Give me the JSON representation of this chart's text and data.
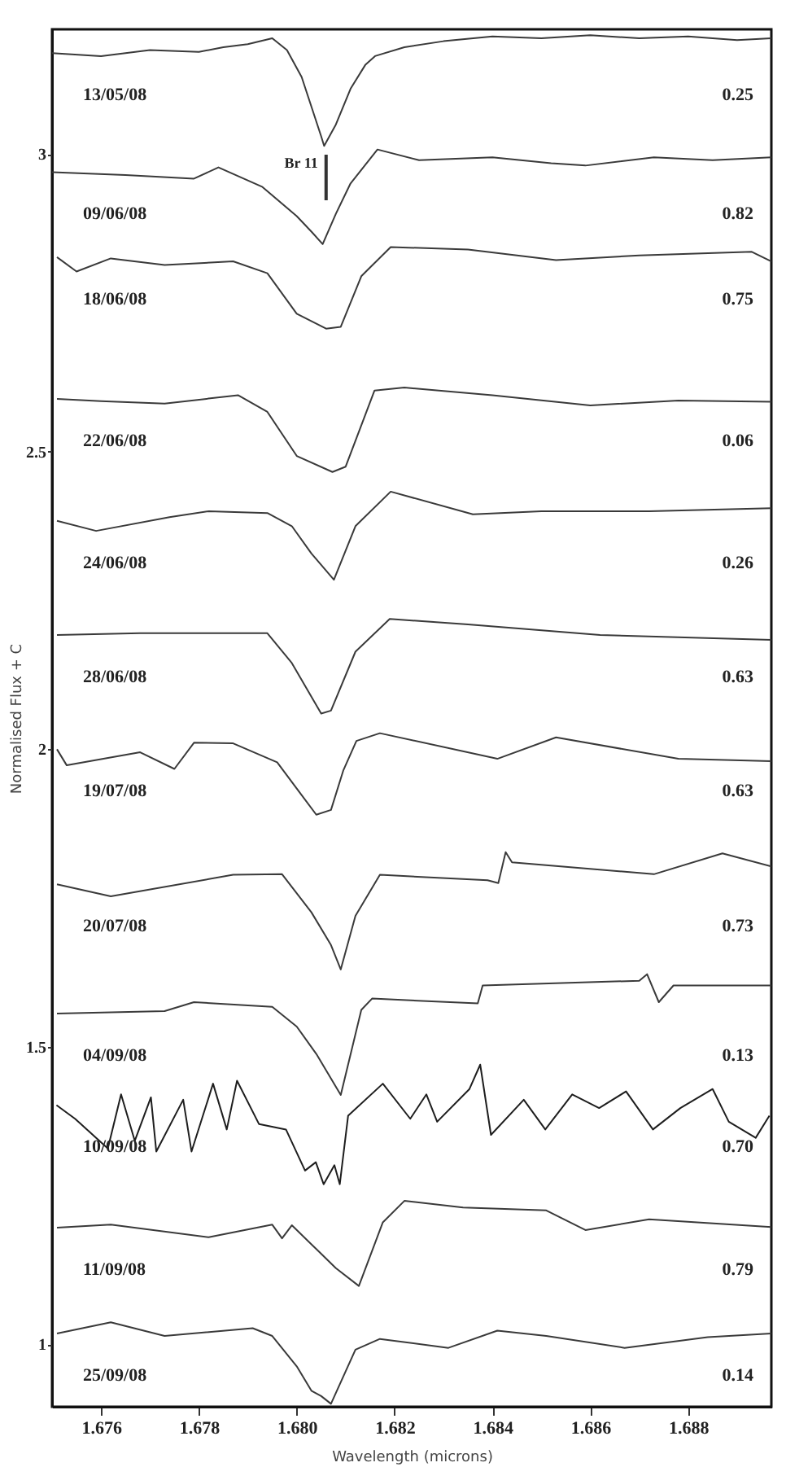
{
  "chart_data": {
    "type": "line",
    "xlabel": "Wavelength (microns)",
    "ylabel": "Normalised Flux + C",
    "xlim": [
      1.675,
      1.6897
    ],
    "ylim": [
      0.895,
      3.21
    ],
    "xticks": [
      1.676,
      1.678,
      {
        "value": 1.68,
        "label": "1.680"
      },
      1.682,
      1.684,
      1.686,
      1.688
    ],
    "yticks": [
      1,
      1.5,
      2,
      2.5,
      3
    ],
    "grid": false,
    "marker": "none",
    "line_style": "solid",
    "series": [
      {
        "name": "13/05/08",
        "color": "#3a3a3a",
        "x": [
          1.675,
          1.676,
          1.677,
          1.678,
          1.6785,
          1.679,
          1.6795,
          1.6798,
          1.6801,
          1.6803,
          1.6805,
          1.68056,
          1.6808,
          1.6811,
          1.6814,
          1.6816,
          1.6822,
          1.683,
          1.684,
          1.685,
          1.686,
          1.687,
          1.688,
          1.689,
          1.6897
        ],
        "values": [
          3.17,
          3.165,
          3.175,
          3.172,
          3.18,
          3.185,
          3.195,
          3.175,
          3.13,
          3.08,
          3.03,
          3.014,
          3.05,
          3.11,
          3.15,
          3.165,
          3.18,
          3.19,
          3.198,
          3.195,
          3.2,
          3.195,
          3.198,
          3.192,
          3.195
        ]
      },
      {
        "name": "09/06/08",
        "color": "#3a3a3a",
        "x": [
          1.675,
          1.6765,
          1.6779,
          1.6784,
          1.6793,
          1.68,
          1.6803,
          1.68053,
          1.6808,
          1.6811,
          1.68165,
          1.6825,
          1.684,
          1.6852,
          1.6859,
          1.6873,
          1.6885,
          1.6897
        ],
        "values": [
          2.97,
          2.965,
          2.959,
          2.978,
          2.945,
          2.896,
          2.87,
          2.849,
          2.9,
          2.951,
          3.008,
          2.99,
          2.995,
          2.985,
          2.981,
          2.995,
          2.99,
          2.995
        ]
      },
      {
        "name": "18/06/08",
        "color": "#3a3a3a",
        "x": [
          1.6751,
          1.6755,
          1.6762,
          1.6773,
          1.6787,
          1.6794,
          1.68,
          1.6806,
          1.6809,
          1.68132,
          1.68192,
          1.6835,
          1.6853,
          1.687,
          1.6893,
          1.6897
        ],
        "values": [
          2.827,
          2.803,
          2.825,
          2.814,
          2.82,
          2.8,
          2.732,
          2.707,
          2.71,
          2.795,
          2.844,
          2.84,
          2.822,
          2.83,
          2.836,
          2.82
        ]
      },
      {
        "name": "22/06/08",
        "color": "#3a3a3a",
        "x": [
          1.6751,
          1.676,
          1.6773,
          1.6788,
          1.6794,
          1.68,
          1.68073,
          1.681,
          1.68159,
          1.6822,
          1.684,
          1.686,
          1.6878,
          1.6897
        ],
        "values": [
          2.589,
          2.585,
          2.581,
          2.595,
          2.567,
          2.493,
          2.466,
          2.475,
          2.603,
          2.608,
          2.595,
          2.578,
          2.586,
          2.584
        ]
      },
      {
        "name": "24/06/08",
        "color": "#3a3a3a",
        "x": [
          1.6751,
          1.6759,
          1.6774,
          1.6782,
          1.6794,
          1.6799,
          1.6803,
          1.68076,
          1.6812,
          1.68192,
          1.6836,
          1.685,
          1.6872,
          1.6897
        ],
        "values": [
          2.384,
          2.367,
          2.39,
          2.4,
          2.397,
          2.375,
          2.329,
          2.285,
          2.375,
          2.433,
          2.395,
          2.4,
          2.4,
          2.405
        ]
      },
      {
        "name": "28/06/08",
        "color": "#3a3a3a",
        "x": [
          1.6751,
          1.6768,
          1.6785,
          1.6794,
          1.6799,
          1.6805,
          1.6807,
          1.6812,
          1.6819,
          1.6835,
          1.6862,
          1.6897
        ],
        "values": [
          2.192,
          2.195,
          2.195,
          2.195,
          2.145,
          2.06,
          2.065,
          2.164,
          2.219,
          2.21,
          2.192,
          2.184
        ]
      },
      {
        "name": "19/07/08",
        "color": "#3a3a3a",
        "x": [
          1.6751,
          1.6753,
          1.6768,
          1.6775,
          1.6779,
          1.6787,
          1.6796,
          1.6801,
          1.6804,
          1.6807,
          1.68095,
          1.68122,
          1.6817,
          1.6841,
          1.6853,
          1.6878,
          1.6897
        ],
        "values": [
          2.0,
          1.973,
          1.995,
          1.967,
          2.011,
          2.01,
          1.978,
          1.923,
          1.89,
          1.898,
          1.964,
          2.014,
          2.027,
          1.984,
          2.02,
          1.984,
          1.98
        ]
      },
      {
        "name": "20/07/08",
        "color": "#3a3a3a",
        "x": [
          1.6751,
          1.6762,
          1.6787,
          1.6797,
          1.6803,
          1.6807,
          1.6809,
          1.6812,
          1.6817,
          1.6839,
          1.68412,
          1.68427,
          1.6844,
          1.6873,
          1.6887,
          1.6897
        ],
        "values": [
          1.773,
          1.753,
          1.789,
          1.79,
          1.726,
          1.671,
          1.63,
          1.72,
          1.789,
          1.78,
          1.775,
          1.827,
          1.81,
          1.79,
          1.825,
          1.803
        ]
      },
      {
        "name": "04/09/08",
        "color": "#3a3a3a",
        "x": [
          1.6751,
          1.6773,
          1.6779,
          1.6795,
          1.68,
          1.6804,
          1.6809,
          1.68132,
          1.68154,
          1.6837,
          1.6838,
          1.687,
          1.68716,
          1.6874,
          1.6877,
          1.6897
        ],
        "values": [
          1.556,
          1.56,
          1.575,
          1.567,
          1.534,
          1.488,
          1.419,
          1.562,
          1.581,
          1.573,
          1.603,
          1.611,
          1.622,
          1.575,
          1.603,
          1.603
        ]
      },
      {
        "name": "10/09/08",
        "color": "#1e1e1e",
        "x": [
          1.67509,
          1.67547,
          1.67614,
          1.67641,
          1.67669,
          1.67702,
          1.67713,
          1.67768,
          1.67785,
          1.67829,
          1.67857,
          1.67878,
          1.67923,
          1.67978,
          1.68017,
          1.68039,
          1.68055,
          1.68077,
          1.68088,
          1.68105,
          1.68176,
          1.68232,
          1.68265,
          1.68287,
          1.68353,
          1.68375,
          1.68397,
          1.68464,
          1.68508,
          1.68563,
          1.68618,
          1.68673,
          1.68728,
          1.68784,
          1.6885,
          1.68883,
          1.68938,
          1.68966
        ],
        "values": [
          1.402,
          1.379,
          1.329,
          1.42,
          1.342,
          1.415,
          1.324,
          1.411,
          1.324,
          1.438,
          1.361,
          1.443,
          1.37,
          1.361,
          1.292,
          1.306,
          1.269,
          1.301,
          1.269,
          1.384,
          1.438,
          1.379,
          1.42,
          1.374,
          1.429,
          1.47,
          1.352,
          1.411,
          1.361,
          1.42,
          1.397,
          1.425,
          1.361,
          1.397,
          1.429,
          1.374,
          1.347,
          1.384
        ]
      },
      {
        "name": "11/09/08",
        "color": "#3a3a3a",
        "x": [
          1.6751,
          1.6762,
          1.6782,
          1.6795,
          1.6797,
          1.6799,
          1.6804,
          1.6808,
          1.68127,
          1.68176,
          1.6822,
          1.6834,
          1.6851,
          1.6859,
          1.6872,
          1.6897
        ],
        "values": [
          1.196,
          1.201,
          1.18,
          1.201,
          1.178,
          1.2,
          1.16,
          1.128,
          1.098,
          1.205,
          1.241,
          1.23,
          1.225,
          1.192,
          1.21,
          1.197
        ]
      },
      {
        "name": "25/09/08",
        "color": "#3a3a3a",
        "x": [
          1.6751,
          1.6762,
          1.6773,
          1.6791,
          1.6795,
          1.68,
          1.6803,
          1.6805,
          1.6807,
          1.6812,
          1.6817,
          1.6831,
          1.6841,
          1.6851,
          1.6867,
          1.6884,
          1.6897
        ],
        "values": [
          1.018,
          1.037,
          1.014,
          1.027,
          1.014,
          0.963,
          0.922,
          0.913,
          0.9,
          0.991,
          1.009,
          0.994,
          1.023,
          1.014,
          0.994,
          1.012,
          1.018
        ]
      }
    ],
    "annotations": [
      "0.25",
      "0.82",
      "0.75",
      "0.06",
      "0.26",
      "0.63",
      "0.63",
      "0.73",
      "0.13",
      "0.70",
      "0.79",
      "0.14"
    ],
    "ref_lines": [
      {
        "axis": "x",
        "value": 1.6806,
        "label": "Br 11"
      }
    ]
  }
}
